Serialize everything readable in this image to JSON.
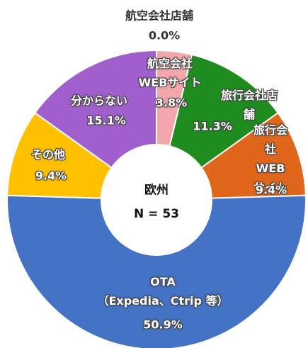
{
  "chart_data": {
    "type": "donut",
    "center_title": "欧州",
    "center_subtitle": "N = 53",
    "categories": [
      "航空会社店舗",
      "航空会社\nWEBサイト",
      "旅行会社店舗",
      "旅行会社\nWEBサイト",
      "OTA\n（Expedia、Ctrip 等）",
      "その他",
      "分からない"
    ],
    "values": [
      0.0,
      3.8,
      11.3,
      9.4,
      50.9,
      9.4,
      15.1
    ],
    "value_labels": [
      "0.0%",
      "3.8%",
      "11.3%",
      "9.4%",
      "50.9%",
      "9.4%",
      "15.1%"
    ],
    "colors": [
      "#f4a6ad",
      "#f4a6ad",
      "#1f8c1f",
      "#e0661c",
      "#4472c4",
      "#ffc000",
      "#a05fcc"
    ]
  }
}
